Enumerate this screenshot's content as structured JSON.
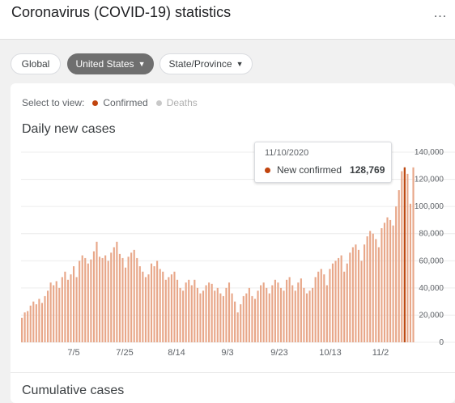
{
  "header": {
    "title": "Coronavirus (COVID-19) statistics",
    "more_icon": "more-horizontal-icon"
  },
  "filters": [
    {
      "label": "Global",
      "active": false,
      "dropdown": false
    },
    {
      "label": "United States",
      "active": true,
      "dropdown": true
    },
    {
      "label": "State/Province",
      "active": false,
      "dropdown": true
    }
  ],
  "select_view": {
    "label": "Select to view:",
    "options": [
      {
        "label": "Confirmed",
        "color": "#c1440e",
        "selected": true
      },
      {
        "label": "Deaths",
        "color": "#c8c8c8",
        "selected": false
      }
    ]
  },
  "sections": {
    "daily_title": "Daily new cases",
    "cumulative_title": "Cumulative cases"
  },
  "tooltip": {
    "date": "11/10/2020",
    "series_label": "New confirmed",
    "value": "128,769"
  },
  "colors": {
    "bar": "#e8a789",
    "bar_highlight": "#bd4a12",
    "grid": "#ececec"
  },
  "chart_data": {
    "type": "bar",
    "title": "Daily new cases",
    "ylim": [
      0,
      140000
    ],
    "yticks": [
      0,
      20000,
      40000,
      60000,
      80000,
      100000,
      120000,
      140000
    ],
    "ytick_labels": [
      "0",
      "20,000",
      "40,000",
      "60,000",
      "80,000",
      "100,000",
      "120,000",
      "140,000"
    ],
    "xtick_labels": [
      "7/5",
      "7/25",
      "8/14",
      "9/3",
      "9/23",
      "10/13",
      "11/2"
    ],
    "grid": true,
    "highlight_index": 133,
    "values": [
      18000,
      22000,
      23000,
      27000,
      30000,
      28000,
      32000,
      29000,
      34000,
      38000,
      44000,
      42000,
      45000,
      40000,
      48000,
      52000,
      46000,
      50000,
      56000,
      48000,
      60000,
      64000,
      62000,
      58000,
      61000,
      67000,
      74000,
      63000,
      62000,
      64000,
      60000,
      66000,
      70000,
      74000,
      65000,
      62000,
      55000,
      63000,
      66000,
      68000,
      62000,
      56000,
      52000,
      48000,
      50000,
      58000,
      56000,
      60000,
      54000,
      52000,
      46000,
      48000,
      50000,
      52000,
      46000,
      40000,
      38000,
      44000,
      46000,
      42000,
      46000,
      40000,
      36000,
      38000,
      42000,
      44000,
      43000,
      38000,
      40000,
      36000,
      34000,
      40000,
      44000,
      36000,
      30000,
      22000,
      28000,
      34000,
      36000,
      40000,
      34000,
      32000,
      38000,
      42000,
      44000,
      40000,
      36000,
      42000,
      46000,
      44000,
      40000,
      38000,
      46000,
      48000,
      42000,
      38000,
      44000,
      47000,
      40000,
      36000,
      38000,
      40000,
      48000,
      52000,
      54000,
      50000,
      42000,
      54000,
      58000,
      60000,
      62000,
      64000,
      52000,
      58000,
      66000,
      70000,
      72000,
      68000,
      60000,
      72000,
      78000,
      82000,
      80000,
      76000,
      70000,
      84000,
      88000,
      92000,
      90000,
      86000,
      100000,
      112000,
      126000,
      128769,
      124000,
      102000,
      128769
    ]
  }
}
